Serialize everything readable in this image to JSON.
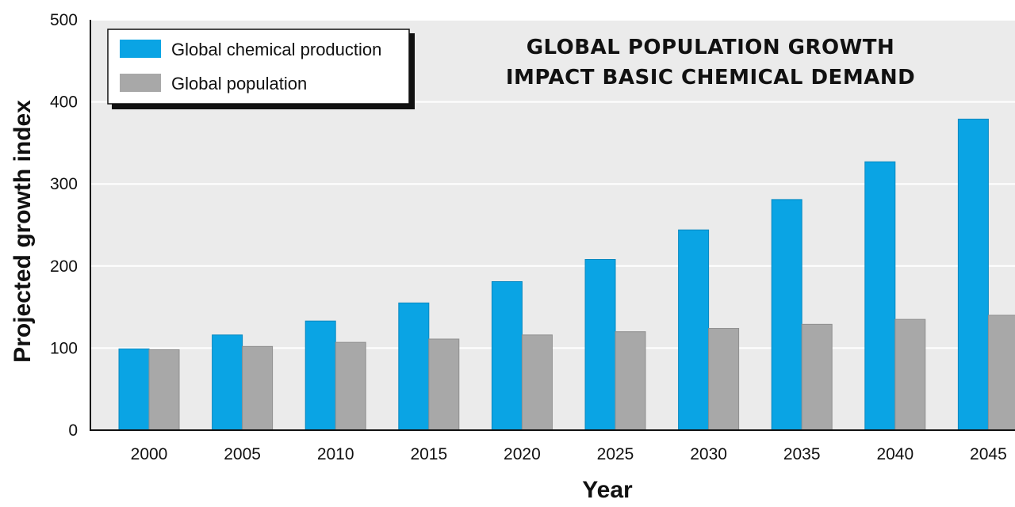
{
  "chart_data": {
    "type": "bar",
    "title": "GLOBAL POPULATION GROWTH IMPACT BASIC CHEMICAL DEMAND",
    "title_lines": [
      "GLOBAL POPULATION GROWTH",
      "IMPACT BASIC CHEMICAL DEMAND"
    ],
    "xlabel": "Year",
    "ylabel": "Projected growth index",
    "categories": [
      "2000",
      "2005",
      "2010",
      "2015",
      "2020",
      "2025",
      "2030",
      "2035",
      "2040",
      "2045"
    ],
    "ylim": [
      0,
      500
    ],
    "yticks": [
      0,
      100,
      200,
      300,
      400,
      500
    ],
    "grid": true,
    "legend_position": "top-left",
    "series": [
      {
        "name": "Global chemical production",
        "color": "#0aa4e4",
        "values": [
          99,
          116,
          133,
          155,
          181,
          208,
          244,
          281,
          327,
          379
        ]
      },
      {
        "name": "Global population",
        "color": "#a8a8a8",
        "values": [
          98,
          102,
          107,
          111,
          116,
          120,
          124,
          129,
          135,
          140
        ]
      }
    ]
  }
}
